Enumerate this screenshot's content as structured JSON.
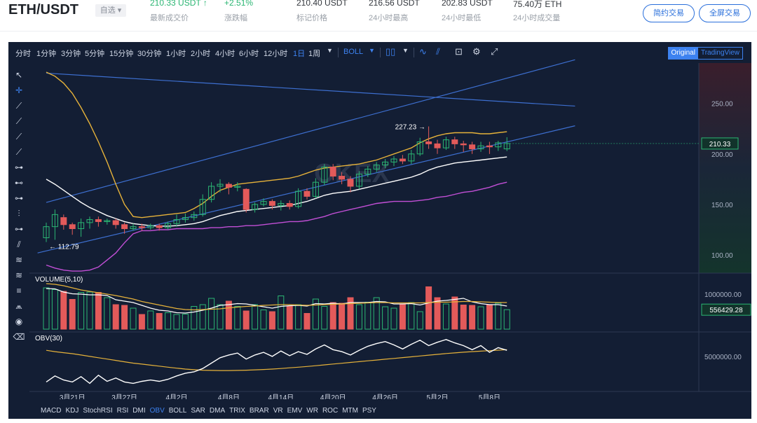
{
  "header": {
    "pair": "ETH/USDT",
    "fav_label": "自选",
    "stats": [
      {
        "value": "210.33 USDT",
        "label": "最新成交价",
        "green": true,
        "arrow": "↑"
      },
      {
        "value": "+2.51%",
        "label": "涨跌幅",
        "green": true
      },
      {
        "value": "210.40 USDT",
        "label": "标记价格"
      },
      {
        "value": "216.56 USDT",
        "label": "24小时最高"
      },
      {
        "value": "202.83 USDT",
        "label": "24小时最低"
      },
      {
        "value": "75.40万 ETH",
        "label": "24小时成交量"
      }
    ],
    "btn_simple": "简约交易",
    "btn_full": "全屏交易"
  },
  "toolbar": {
    "timeframes": [
      "分时",
      "1分钟",
      "3分钟",
      "5分钟",
      "15分钟",
      "30分钟",
      "1小时",
      "2小时",
      "4小时",
      "6小时",
      "12小时",
      "1日",
      "1周"
    ],
    "active_tf": "1日",
    "indicator": "BOLL",
    "view_original": "Original",
    "view_tv": "TradingView"
  },
  "indicators_bar": [
    "MACD",
    "KDJ",
    "StochRSI",
    "RSI",
    "DMI",
    "OBV",
    "BOLL",
    "SAR",
    "DMA",
    "TRIX",
    "BRAR",
    "VR",
    "EMV",
    "WR",
    "ROC",
    "MTM",
    "PSY"
  ],
  "active_indicator": "OBV",
  "watermark": "OKEX",
  "colors": {
    "up": "#2bb673",
    "down": "#e35a5a",
    "accent": "#3d82f0",
    "bg": "#131e34",
    "mid": "#ffffff",
    "upper": "#e6b23a",
    "lower": "#c24fd6"
  },
  "chart_data": [
    {
      "type": "candlestick",
      "ylim": [
        82,
        290
      ],
      "yticks": [
        "250.00",
        "200.00",
        "150.00",
        "100.00"
      ],
      "xticks": [
        "3月21日",
        "3月27日",
        "4月2日",
        "4月8日",
        "4月14日",
        "4月20日",
        "4月26日",
        "5月2日",
        "5月8日"
      ],
      "last_price": "210.33",
      "annotations": {
        "high": "227.23",
        "low": "112.79"
      },
      "candles": [
        [
          117,
          128,
          132,
          112.79
        ],
        [
          128,
          140,
          145,
          115
        ],
        [
          137,
          130,
          140,
          125
        ],
        [
          130,
          126,
          132,
          120
        ],
        [
          126,
          132,
          136,
          118
        ],
        [
          132,
          135,
          138,
          126
        ],
        [
          135,
          133,
          138,
          128
        ],
        [
          133,
          134,
          136,
          130
        ],
        [
          134,
          130,
          136,
          126
        ],
        [
          130,
          126,
          132,
          121
        ],
        [
          126,
          128,
          131,
          124
        ],
        [
          128,
          127,
          131,
          124
        ],
        [
          127,
          129,
          131,
          125
        ],
        [
          129,
          127,
          131,
          124
        ],
        [
          127,
          131,
          133,
          125
        ],
        [
          131,
          135,
          140,
          128
        ],
        [
          135,
          137,
          141,
          132
        ],
        [
          137,
          140,
          143,
          134
        ],
        [
          140,
          155,
          160,
          138
        ],
        [
          155,
          168,
          172,
          152
        ],
        [
          168,
          170,
          175,
          162
        ],
        [
          170,
          167,
          172,
          160
        ],
        [
          167,
          168,
          172,
          163
        ],
        [
          165,
          145,
          166,
          142
        ],
        [
          145,
          150,
          152,
          142
        ],
        [
          150,
          153,
          156,
          148
        ],
        [
          153,
          149,
          155,
          145
        ],
        [
          149,
          151,
          154,
          144
        ],
        [
          151,
          148,
          154,
          145
        ],
        [
          148,
          163,
          166,
          146
        ],
        [
          163,
          158,
          166,
          155
        ],
        [
          158,
          172,
          176,
          156
        ],
        [
          172,
          187,
          190,
          169
        ],
        [
          187,
          178,
          190,
          174
        ],
        [
          178,
          175,
          182,
          170
        ],
        [
          175,
          168,
          178,
          162
        ],
        [
          168,
          180,
          183,
          165
        ],
        [
          180,
          185,
          188,
          177
        ],
        [
          185,
          189,
          192,
          182
        ],
        [
          189,
          192,
          195,
          186
        ],
        [
          192,
          195,
          198,
          188
        ],
        [
          195,
          193,
          199,
          190
        ],
        [
          193,
          200,
          204,
          190
        ],
        [
          200,
          212,
          216,
          198
        ],
        [
          212,
          210,
          227.23,
          205
        ],
        [
          210,
          206,
          214,
          200
        ],
        [
          206,
          214,
          217,
          204
        ],
        [
          214,
          210,
          217,
          205
        ],
        [
          210,
          209,
          213,
          202
        ],
        [
          209,
          205,
          212,
          200
        ],
        [
          205,
          208,
          212,
          202
        ],
        [
          208,
          207,
          212,
          200
        ],
        [
          207,
          211,
          213,
          203
        ],
        [
          205,
          210.33,
          216.56,
          202.83
        ]
      ],
      "boll_mid": [
        175,
        170,
        164,
        158,
        152,
        147,
        143,
        139,
        136,
        133,
        131,
        130,
        129,
        128.5,
        128.5,
        129,
        130,
        131,
        133,
        136,
        139,
        141,
        143,
        144,
        145,
        146,
        147,
        148,
        149,
        151,
        153,
        156,
        159,
        161,
        162,
        163,
        165,
        167,
        169,
        171,
        173,
        175,
        177,
        180,
        184,
        187,
        189,
        191,
        192,
        193,
        194,
        195,
        196,
        197
      ],
      "boll_upper": [
        281,
        277,
        270,
        260,
        246,
        230,
        212,
        192,
        170,
        150,
        138,
        137,
        138,
        139,
        140,
        141,
        142,
        146,
        151,
        158,
        164,
        167,
        170,
        171,
        172,
        173,
        174,
        175,
        176,
        178,
        181,
        184,
        186,
        187,
        188,
        189,
        190,
        192,
        194,
        197,
        200,
        203,
        206,
        211,
        215,
        218,
        220,
        221,
        221,
        221,
        220,
        220,
        221,
        222
      ],
      "boll_lower": [
        90,
        87,
        85,
        84,
        84,
        85,
        88,
        95,
        102,
        112,
        121,
        124,
        124,
        125,
        125,
        126,
        126,
        126,
        126,
        127,
        127,
        128,
        128,
        129,
        129,
        130,
        131,
        132,
        133,
        133,
        134,
        136,
        138,
        141,
        143,
        145,
        147,
        149,
        151,
        152,
        153,
        153,
        153,
        154,
        155,
        157,
        158,
        160,
        162,
        163,
        165,
        167,
        170,
        172
      ],
      "trend_lines": [
        {
          "from": [
            0,
            152
          ],
          "to": [
            56,
            282
          ]
        },
        {
          "from": [
            -1,
            102
          ],
          "to": [
            56,
            218
          ]
        },
        {
          "from": [
            0,
            280
          ],
          "to": [
            56,
            250
          ]
        }
      ]
    },
    {
      "type": "bar",
      "title": "VOLUME(5,10)",
      "ylim": [
        0,
        1400000
      ],
      "yticks": [
        "1000000.00"
      ],
      "last_value": "556429.28",
      "values": [
        1180000,
        1130000,
        1080000,
        850000,
        1050000,
        1060000,
        1050000,
        900000,
        700000,
        680000,
        600000,
        420000,
        520000,
        450000,
        470000,
        420000,
        430000,
        650000,
        700000,
        880000,
        700000,
        800000,
        650000,
        520000,
        700000,
        550000,
        500000,
        950000,
        650000,
        700000,
        450000,
        860000,
        650000,
        760000,
        740000,
        900000,
        700000,
        770000,
        900000,
        640000,
        600000,
        700000,
        760000,
        500000,
        1210000,
        900000,
        720000,
        920000,
        690000,
        680000,
        640000,
        700000,
        740000,
        556429.28
      ],
      "ma5": [
        1160000,
        1150000,
        1060000,
        1010000,
        1000000,
        980000,
        980000,
        960000,
        840000,
        800000,
        760000,
        680000,
        600000,
        540000,
        520000,
        470000,
        460000,
        490000,
        540000,
        600000,
        680000,
        700000,
        730000,
        720000,
        680000,
        640000,
        600000,
        650000,
        670000,
        680000,
        660000,
        730000,
        720000,
        740000,
        720000,
        760000,
        760000,
        760000,
        790000,
        780000,
        720000,
        720000,
        730000,
        690000,
        750000,
        800000,
        820000,
        850000,
        880000,
        780000,
        730000,
        700000,
        700000,
        660000
      ],
      "ma10": [
        1300000,
        1280000,
        1240000,
        1180000,
        1120000,
        1080000,
        1040000,
        1000000,
        960000,
        910000,
        860000,
        790000,
        740000,
        690000,
        640000,
        590000,
        560000,
        550000,
        560000,
        570000,
        580000,
        610000,
        630000,
        650000,
        660000,
        680000,
        690000,
        700000,
        700000,
        690000,
        680000,
        690000,
        700000,
        710000,
        720000,
        730000,
        740000,
        750000,
        760000,
        760000,
        750000,
        750000,
        750000,
        750000,
        760000,
        770000,
        770000,
        780000,
        790000,
        790000,
        780000,
        770000,
        760000,
        760000
      ]
    },
    {
      "type": "line",
      "title": "OBV(30)",
      "ylim": [
        0,
        8000000
      ],
      "yticks": [
        "5000000.00"
      ],
      "obv": [
        1200000,
        2100000,
        1500000,
        1200000,
        2000000,
        1000000,
        2200000,
        1300000,
        1800000,
        1200000,
        1000000,
        1300000,
        1500000,
        1300000,
        1600000,
        2100000,
        2500000,
        2700000,
        3200000,
        4000000,
        4800000,
        5200000,
        5500000,
        4600000,
        5200000,
        5600000,
        5000000,
        5800000,
        5100000,
        5700000,
        5300000,
        6100000,
        6700000,
        6000000,
        5700000,
        5200000,
        5900000,
        6500000,
        6900000,
        7200000,
        6700000,
        6100000,
        6800000,
        7400000,
        6600000,
        7100000,
        7500000,
        7000000,
        6600000,
        6000000,
        6600000,
        5600000,
        6300000,
        5900000
      ],
      "ma": [
        5900000,
        5700000,
        5550000,
        5400000,
        5200000,
        5000000,
        4800000,
        4600000,
        4400000,
        4200000,
        4000000,
        3850000,
        3700000,
        3550000,
        3400000,
        3250000,
        3120000,
        3020000,
        2950000,
        2920000,
        2900000,
        2900000,
        2920000,
        2950000,
        3000000,
        3050000,
        3120000,
        3200000,
        3300000,
        3400000,
        3500000,
        3620000,
        3740000,
        3860000,
        3980000,
        4100000,
        4220000,
        4340000,
        4460000,
        4580000,
        4700000,
        4820000,
        4940000,
        5060000,
        5180000,
        5300000,
        5420000,
        5520000,
        5620000,
        5700000,
        5780000,
        5850000,
        5920000,
        6000000
      ]
    }
  ]
}
